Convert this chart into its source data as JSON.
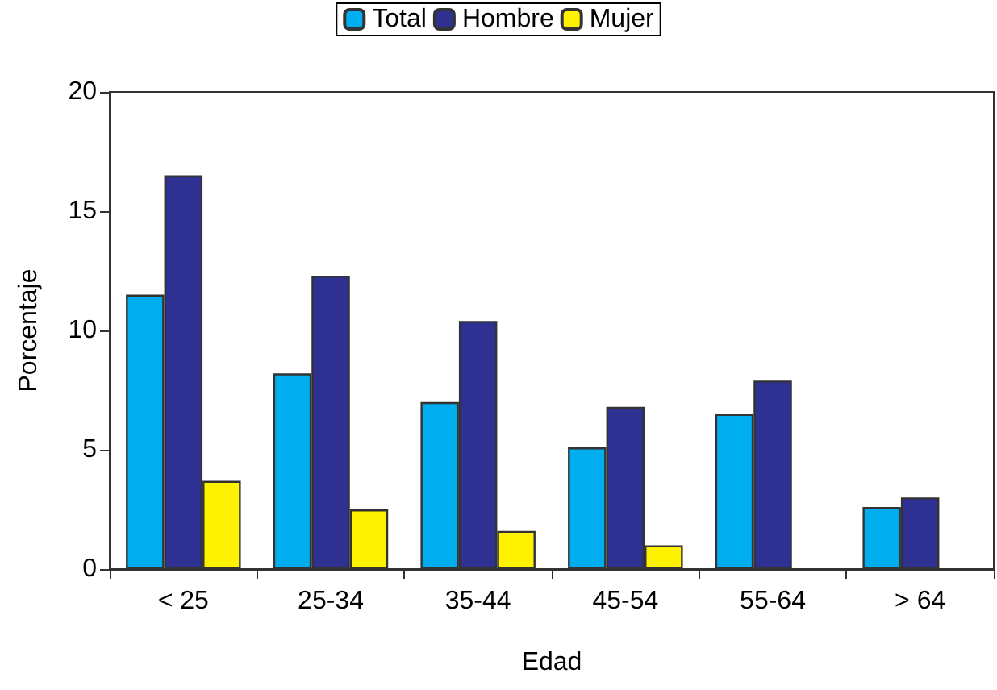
{
  "chart_data": {
    "type": "bar",
    "xlabel": "Edad",
    "ylabel": "Porcentaje",
    "categories": [
      "< 25",
      "25-34",
      "35-44",
      "45-54",
      "55-64",
      "> 64"
    ],
    "series": [
      {
        "name": "Total",
        "color": "#00aeef",
        "values": [
          11.5,
          8.2,
          7.0,
          5.1,
          6.5,
          2.6
        ]
      },
      {
        "name": "Hombre",
        "color": "#2e3192",
        "values": [
          16.5,
          12.3,
          10.4,
          6.8,
          7.9,
          3.0
        ]
      },
      {
        "name": "Mujer",
        "color": "#fff200",
        "values": [
          3.7,
          2.5,
          1.6,
          1.0,
          null,
          null
        ]
      }
    ],
    "ylim": [
      0,
      20
    ],
    "yticks": [
      0,
      5,
      10,
      15,
      20
    ],
    "grid": false,
    "legend": "top"
  }
}
